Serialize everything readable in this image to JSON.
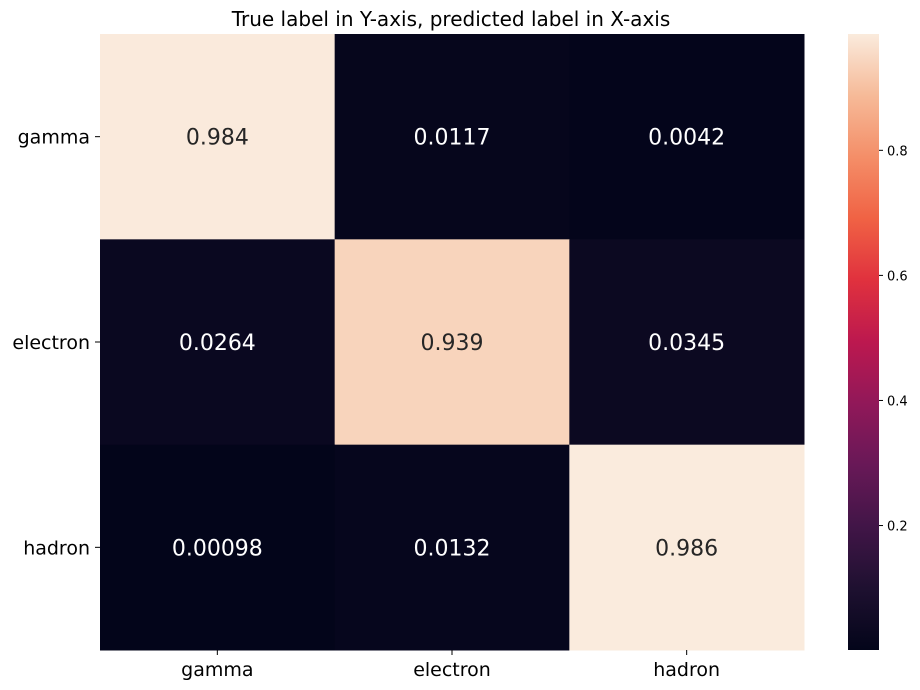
{
  "chart_data": {
    "type": "heatmap",
    "title": "True label in Y-axis, predicted label in X-axis",
    "xlabel": "",
    "ylabel": "",
    "x_categories": [
      "gamma",
      "electron",
      "hadron"
    ],
    "y_categories": [
      "gamma",
      "electron",
      "hadron"
    ],
    "values": [
      [
        0.984,
        0.0117,
        0.0042
      ],
      [
        0.0264,
        0.939,
        0.0345
      ],
      [
        0.00098,
        0.0132,
        0.986
      ]
    ],
    "cell_labels": [
      [
        "0.984",
        "0.0117",
        "0.0042"
      ],
      [
        "0.0264",
        "0.939",
        "0.0345"
      ],
      [
        "0.00098",
        "0.0132",
        "0.986"
      ]
    ],
    "colormap": "rocket",
    "colorbar": {
      "min": 0.00098,
      "max": 0.986,
      "ticks": [
        0.2,
        0.4,
        0.6,
        0.8
      ],
      "tick_labels": [
        "0.2",
        "0.4",
        "0.6",
        "0.8"
      ]
    },
    "grid": false
  }
}
